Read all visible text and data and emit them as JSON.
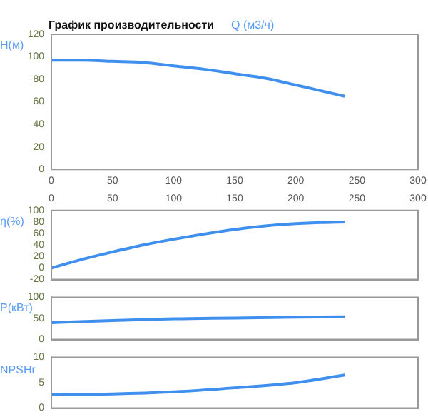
{
  "chart_data": [
    {
      "type": "line",
      "title": "График производительности",
      "xlabel": "Q (м3/ч)",
      "ylabel": "H(м)",
      "x": [
        0,
        25,
        50,
        75,
        100,
        125,
        150,
        175,
        200,
        220,
        240
      ],
      "series": [
        {
          "color": "#3f8fef",
          "values": [
            97,
            97,
            96,
            95,
            92,
            89,
            85,
            81,
            75,
            70,
            65
          ]
        }
      ],
      "xlim": [
        0,
        300
      ],
      "xticks": [
        0,
        50,
        100,
        150,
        200,
        250,
        300
      ],
      "ylim": [
        0,
        120
      ],
      "yticks": [
        0,
        20,
        40,
        60,
        80,
        100,
        120
      ]
    },
    {
      "type": "line",
      "ylabel": "η(%)",
      "x": [
        0,
        25,
        50,
        75,
        100,
        125,
        150,
        175,
        200,
        220,
        240
      ],
      "series": [
        {
          "color": "#3f8fef",
          "values": [
            0,
            15,
            28,
            40,
            50,
            59,
            67,
            73,
            77,
            79,
            80
          ]
        }
      ],
      "xlim": [
        0,
        300
      ],
      "x2lim": [
        0,
        300
      ],
      "x2ticks": [
        0,
        50,
        100,
        150,
        200,
        250,
        300
      ],
      "ylim": [
        -20,
        100
      ],
      "yticks": [
        -20,
        0,
        20,
        40,
        60,
        80,
        100
      ]
    },
    {
      "type": "line",
      "ylabel": "P(кВт)",
      "x": [
        0,
        50,
        100,
        150,
        200,
        240
      ],
      "series": [
        {
          "color": "#3f8fef",
          "values": [
            40,
            45,
            49,
            51,
            53,
            54
          ]
        }
      ],
      "xlim": [
        0,
        300
      ],
      "ylim": [
        0,
        100
      ],
      "yticks": [
        0,
        50,
        100
      ],
      "tick_labels": "y"
    },
    {
      "type": "line",
      "ylabel": "NPSHr",
      "x": [
        0,
        50,
        100,
        150,
        200,
        240
      ],
      "series": [
        {
          "color": "#3f8fef",
          "values": [
            2.7,
            2.8,
            3.2,
            4,
            5,
            6.5
          ]
        }
      ],
      "xlim": [
        0,
        300
      ],
      "ylim": [
        0,
        10
      ],
      "yticks": [
        0,
        5,
        10
      ],
      "tick_labels": "y"
    }
  ]
}
